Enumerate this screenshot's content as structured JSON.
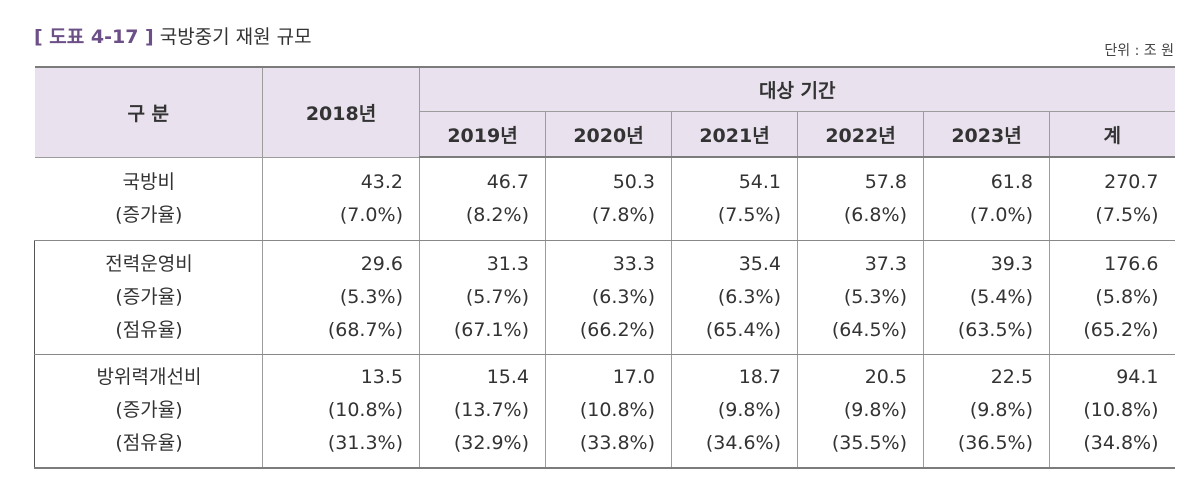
{
  "title": {
    "code": "[ 도표 4-17 ]",
    "text": "국방중기 재원 규모"
  },
  "unit": "단위 : 조 원",
  "header": {
    "category": "구 분",
    "base_year": "2018년",
    "period": "대상 기간",
    "years": [
      "2019년",
      "2020년",
      "2021년",
      "2022년",
      "2023년",
      "계"
    ]
  },
  "rows": [
    {
      "labels": [
        "국방비",
        "(증가율)"
      ],
      "values": [
        [
          "43.2",
          "(7.0%)"
        ],
        [
          "46.7",
          "(8.2%)"
        ],
        [
          "50.3",
          "(7.8%)"
        ],
        [
          "54.1",
          "(7.5%)"
        ],
        [
          "57.8",
          "(6.8%)"
        ],
        [
          "61.8",
          "(7.0%)"
        ],
        [
          "270.7",
          "(7.5%)"
        ]
      ]
    },
    {
      "labels": [
        "전력운영비",
        "(증가율)",
        "(점유율)"
      ],
      "values": [
        [
          "29.6",
          "(5.3%)",
          "(68.7%)"
        ],
        [
          "31.3",
          "(5.7%)",
          "(67.1%)"
        ],
        [
          "33.3",
          "(6.3%)",
          "(66.2%)"
        ],
        [
          "35.4",
          "(6.3%)",
          "(65.4%)"
        ],
        [
          "37.3",
          "(5.3%)",
          "(64.5%)"
        ],
        [
          "39.3",
          "(5.4%)",
          "(63.5%)"
        ],
        [
          "176.6",
          "(5.8%)",
          "(65.2%)"
        ]
      ]
    },
    {
      "labels": [
        "방위력개선비",
        "(증가율)",
        "(점유율)"
      ],
      "values": [
        [
          "13.5",
          "(10.8%)",
          "(31.3%)"
        ],
        [
          "15.4",
          "(13.7%)",
          "(32.9%)"
        ],
        [
          "17.0",
          "(10.8%)",
          "(33.8%)"
        ],
        [
          "18.7",
          "(9.8%)",
          "(34.6%)"
        ],
        [
          "20.5",
          "(9.8%)",
          "(35.5%)"
        ],
        [
          "22.5",
          "(9.8%)",
          "(36.5%)"
        ],
        [
          "94.1",
          "(10.8%)",
          "(34.8%)"
        ]
      ]
    }
  ]
}
